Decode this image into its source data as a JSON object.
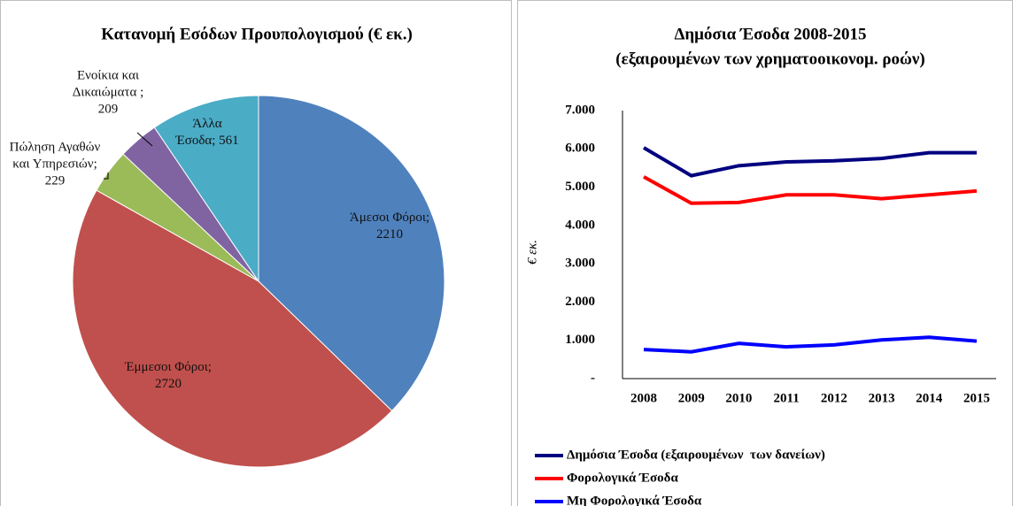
{
  "chart_data": [
    {
      "type": "pie",
      "title": "Κατανομή Εσόδων Προυπολογισμού (€ εκ.)",
      "values": [
        2210,
        2720,
        229,
        209,
        561
      ],
      "value_labels": [
        "Άμεσοι Φόροι; 2210",
        "Έμμεσοι Φόροι; 2720",
        "Πώληση Αγαθών και Υπηρεσιών; 229",
        "Ενοίκια και Δικαιώματα ; 209",
        "Άλλα Έσοδα; 561"
      ],
      "colors": [
        "#4f81bd",
        "#c0504d",
        "#9bbb59",
        "#8064a2",
        "#4bacc6"
      ]
    },
    {
      "type": "line",
      "title": "Δημόσια Έσοδα 2008-2015",
      "subtitle": "(εξαιρουμένων των χρηματοοικονομ. ροών)",
      "y_label": "€ εκ.",
      "categories": [
        "2008",
        "2009",
        "2010",
        "2011",
        "2012",
        "2013",
        "2014",
        "2015"
      ],
      "series": [
        {
          "name": "Δημόσια Έσοδα (εξαιρουμένων  των δανείων)",
          "color": "#000080",
          "values": [
            6030,
            5300,
            5560,
            5660,
            5690,
            5750,
            5900,
            5900
          ]
        },
        {
          "name": "Φορολογικά Έσοδα",
          "color": "#ff0000",
          "values": [
            5270,
            4580,
            4600,
            4800,
            4800,
            4700,
            4800,
            4900
          ]
        },
        {
          "name": "Μη Φορολογικά Έσοδα",
          "color": "#0000ff",
          "values": [
            760,
            700,
            920,
            830,
            880,
            1010,
            1080,
            980
          ]
        }
      ],
      "ylim": [
        0,
        7000
      ],
      "yticks": [
        {
          "value": 0,
          "label": "-"
        },
        {
          "value": 1000,
          "label": "1.000"
        },
        {
          "value": 2000,
          "label": "2.000"
        },
        {
          "value": 3000,
          "label": "3.000"
        },
        {
          "value": 4000,
          "label": "4.000"
        },
        {
          "value": 5000,
          "label": "5.000"
        },
        {
          "value": 6000,
          "label": "6.000"
        },
        {
          "value": 7000,
          "label": "7.000"
        }
      ],
      "legend": "bottom"
    }
  ]
}
